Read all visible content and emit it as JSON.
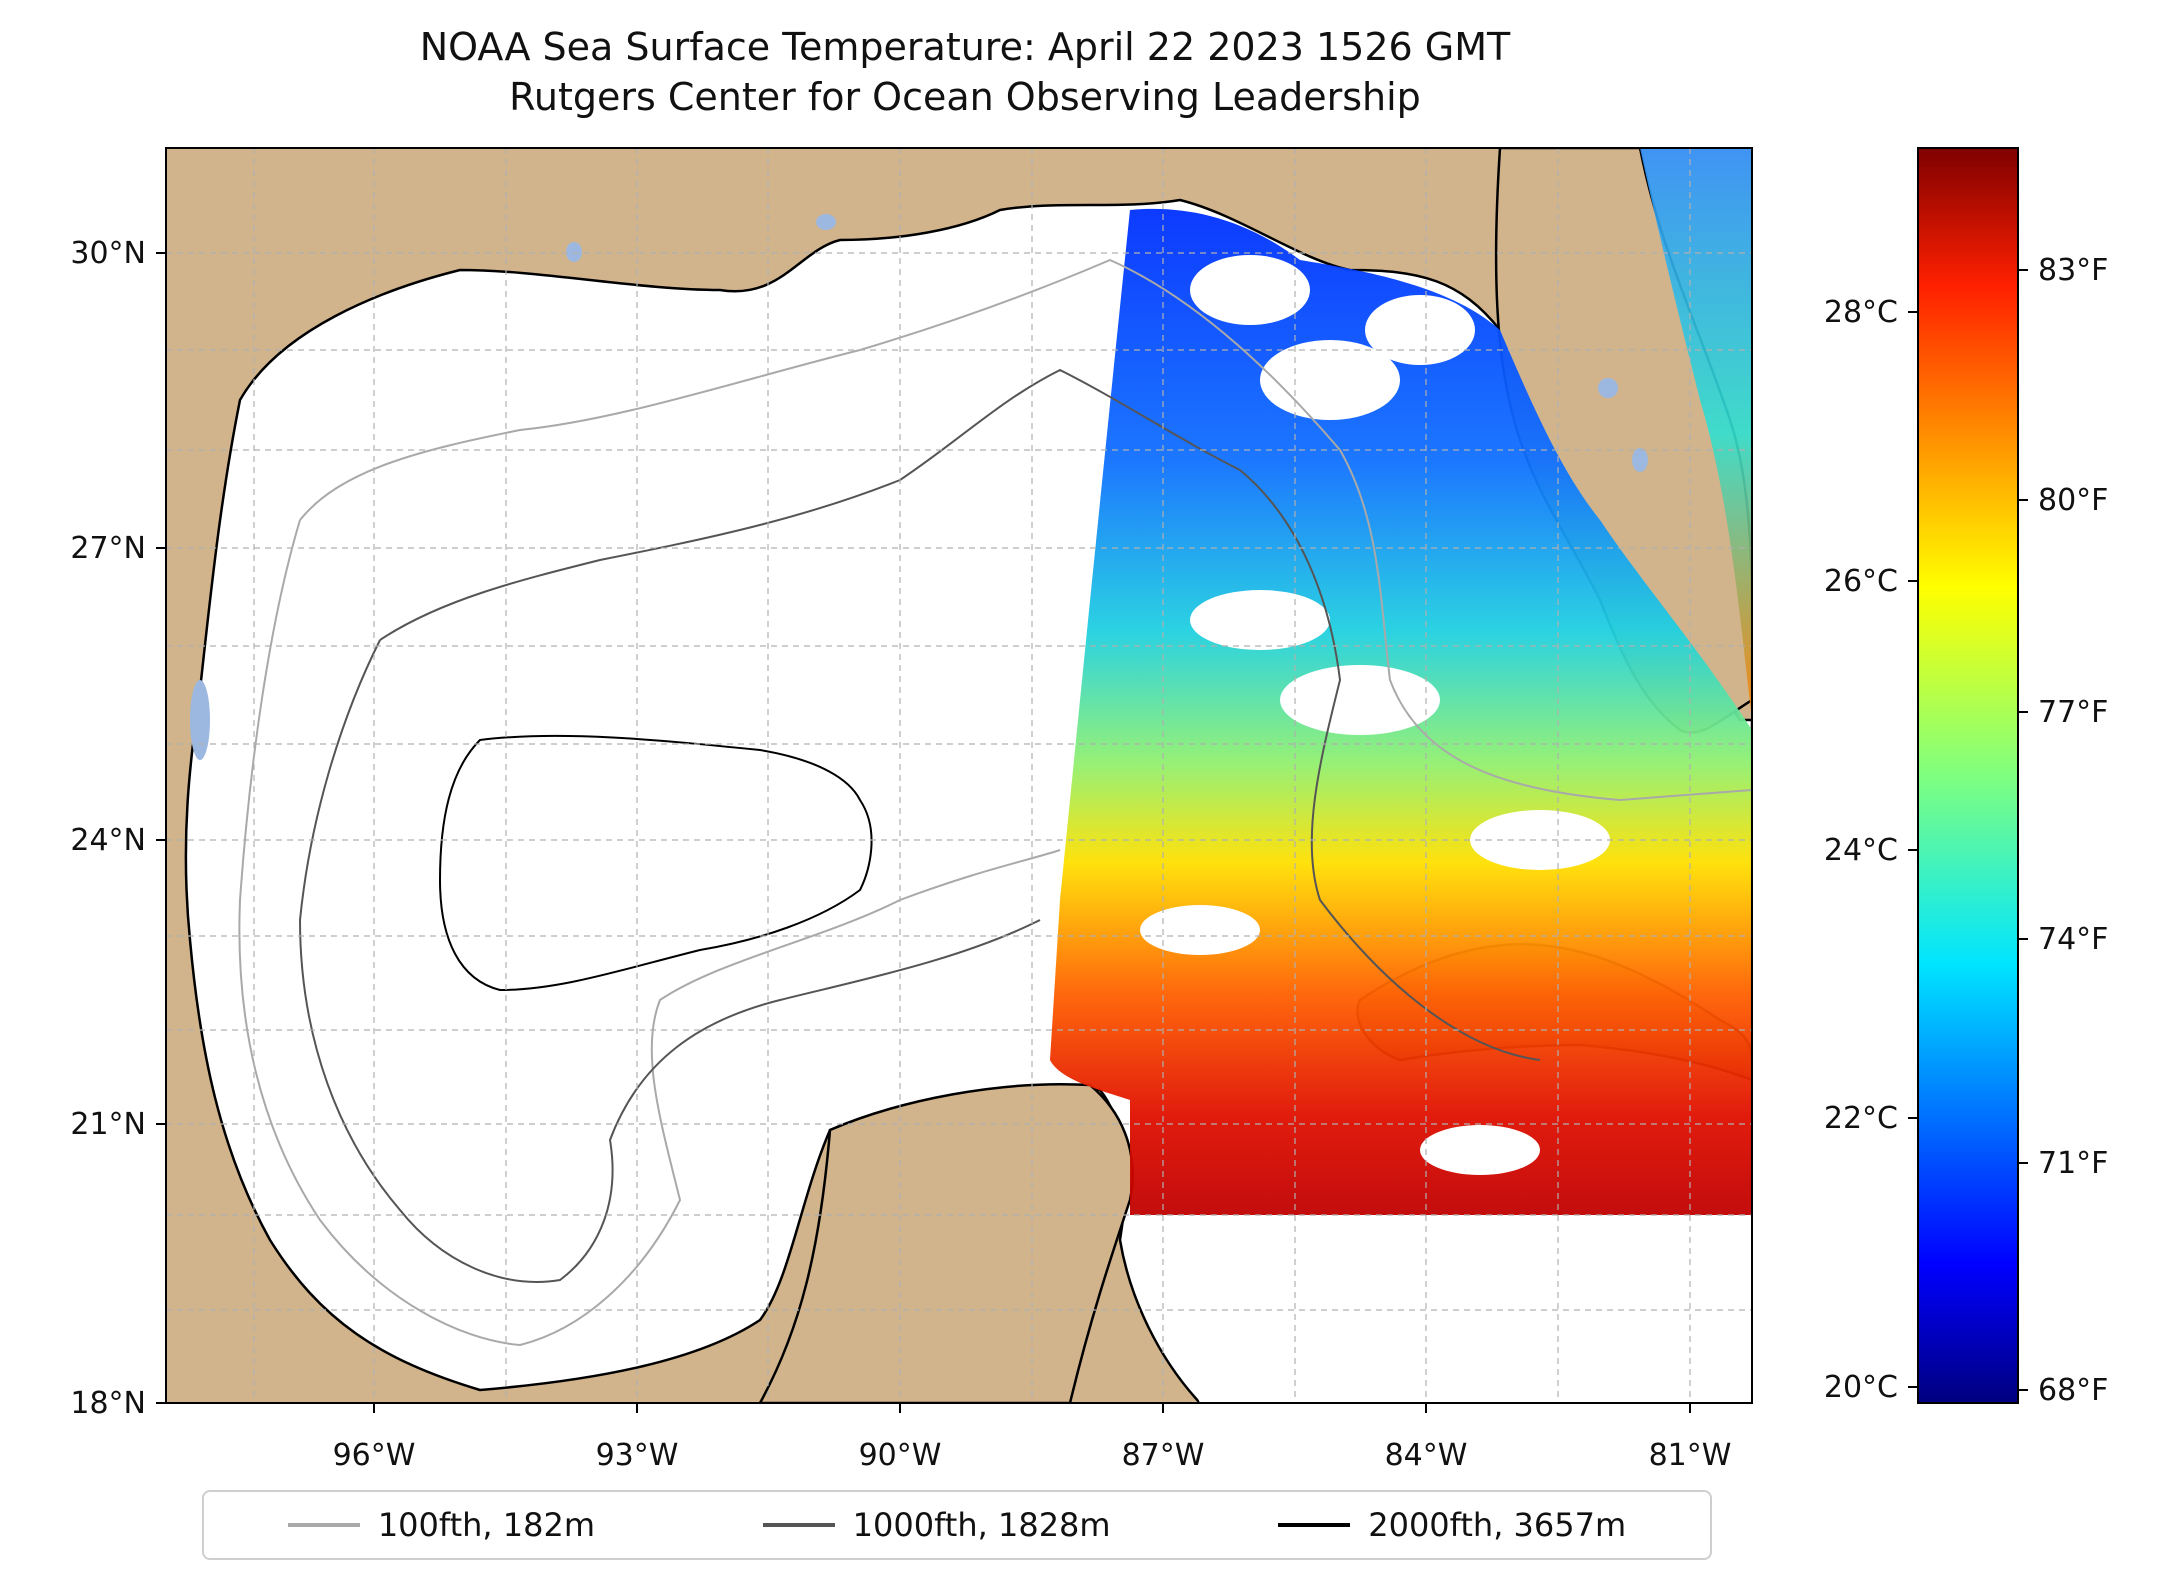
{
  "title": {
    "line1": "NOAA Sea Surface Temperature: April 22 2023 1526 GMT",
    "line2": "Rutgers Center for Ocean Observing Leadership"
  },
  "map": {
    "lon_ticks": [
      "96°W",
      "93°W",
      "90°W",
      "87°W",
      "84°W",
      "81°W"
    ],
    "lat_ticks": [
      "30°N",
      "27°N",
      "24°N",
      "21°N",
      "18°N"
    ],
    "extent": {
      "lon_min": -98.3,
      "lon_max": -80.4,
      "lat_min": 18.0,
      "lat_max": 31.0
    },
    "colors": {
      "land": "#d2b48c",
      "ocean_nodata": "#ffffff",
      "lakes": "#9db8e0",
      "grid": "#b0b0b0"
    }
  },
  "colorbar": {
    "colormap": "jet",
    "celsius_ticks": [
      "28°C",
      "26°C",
      "24°C",
      "22°C",
      "20°C"
    ],
    "fahrenheit_ticks": [
      "83°F",
      "80°F",
      "77°F",
      "74°F",
      "71°F",
      "68°F"
    ],
    "range_c": [
      19.9,
      29.2
    ]
  },
  "legend": {
    "items": [
      {
        "label": "100fth, 182m",
        "color": "#a9a9a9"
      },
      {
        "label": "1000fth, 1828m",
        "color": "#555555"
      },
      {
        "label": "2000fth, 3657m",
        "color": "#000000"
      }
    ]
  }
}
